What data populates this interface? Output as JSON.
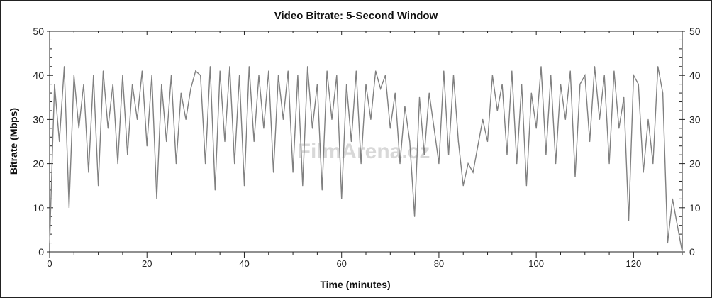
{
  "chart_data": {
    "type": "line",
    "title": "Video Bitrate: 5-Second Window",
    "xlabel": "Time (minutes)",
    "ylabel": "Bitrate (Mbps)",
    "xlim": [
      0,
      130
    ],
    "ylim": [
      0,
      50
    ],
    "x_ticks": [
      0,
      20,
      40,
      60,
      80,
      100,
      120
    ],
    "y_ticks": [
      0,
      10,
      20,
      30,
      40,
      50
    ],
    "grid": false,
    "legend": "none",
    "series_color": "#808080",
    "watermark": "FilmArena.cz",
    "x": [
      0,
      1,
      2,
      3,
      4,
      5,
      6,
      7,
      8,
      9,
      10,
      11,
      12,
      13,
      14,
      15,
      16,
      17,
      18,
      19,
      20,
      21,
      22,
      23,
      24,
      25,
      26,
      27,
      28,
      29,
      30,
      31,
      32,
      33,
      34,
      35,
      36,
      37,
      38,
      39,
      40,
      41,
      42,
      43,
      44,
      45,
      46,
      47,
      48,
      49,
      50,
      51,
      52,
      53,
      54,
      55,
      56,
      57,
      58,
      59,
      60,
      61,
      62,
      63,
      64,
      65,
      66,
      67,
      68,
      69,
      70,
      71,
      72,
      73,
      74,
      75,
      76,
      77,
      78,
      79,
      80,
      81,
      82,
      83,
      84,
      85,
      86,
      87,
      88,
      89,
      90,
      91,
      92,
      93,
      94,
      95,
      96,
      97,
      98,
      99,
      100,
      101,
      102,
      103,
      104,
      105,
      106,
      107,
      108,
      109,
      110,
      111,
      112,
      113,
      114,
      115,
      116,
      117,
      118,
      119,
      120,
      121,
      122,
      123,
      124,
      125,
      126,
      127,
      128,
      129,
      130
    ],
    "values": [
      2,
      38,
      25,
      42,
      10,
      40,
      28,
      38,
      18,
      40,
      15,
      41,
      28,
      38,
      20,
      40,
      22,
      38,
      30,
      41,
      24,
      40,
      12,
      38,
      25,
      40,
      20,
      36,
      30,
      37,
      41,
      40,
      20,
      42,
      14,
      41,
      25,
      42,
      20,
      40,
      15,
      42,
      25,
      40,
      28,
      41,
      18,
      40,
      30,
      41,
      18,
      40,
      15,
      42,
      28,
      38,
      14,
      41,
      30,
      40,
      12,
      38,
      25,
      41,
      20,
      38,
      30,
      41,
      37,
      40,
      28,
      36,
      20,
      33,
      25,
      8,
      35,
      22,
      36,
      28,
      20,
      41,
      22,
      40,
      25,
      15,
      20,
      18,
      24,
      30,
      25,
      40,
      32,
      38,
      22,
      41,
      20,
      38,
      15,
      36,
      28,
      42,
      22,
      40,
      20,
      38,
      30,
      41,
      17,
      38,
      40,
      25,
      42,
      30,
      40,
      20,
      41,
      28,
      35,
      7,
      40,
      38,
      18,
      30,
      20,
      42,
      36,
      2,
      12,
      6,
      0
    ]
  }
}
